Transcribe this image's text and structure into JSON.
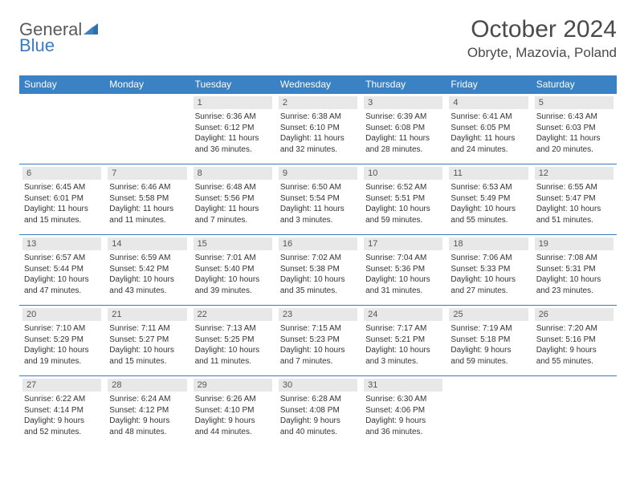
{
  "logo": {
    "text_general": "General",
    "text_blue": "Blue"
  },
  "title": "October 2024",
  "location": "Obryte, Mazovia, Poland",
  "header_bg": "#3b82c4",
  "border_color": "#3b7bbf",
  "daynum_bg": "#e8e8e8",
  "days_of_week": [
    "Sunday",
    "Monday",
    "Tuesday",
    "Wednesday",
    "Thursday",
    "Friday",
    "Saturday"
  ],
  "weeks": [
    [
      null,
      null,
      {
        "num": "1",
        "sunrise": "Sunrise: 6:36 AM",
        "sunset": "Sunset: 6:12 PM",
        "daylight": "Daylight: 11 hours and 36 minutes."
      },
      {
        "num": "2",
        "sunrise": "Sunrise: 6:38 AM",
        "sunset": "Sunset: 6:10 PM",
        "daylight": "Daylight: 11 hours and 32 minutes."
      },
      {
        "num": "3",
        "sunrise": "Sunrise: 6:39 AM",
        "sunset": "Sunset: 6:08 PM",
        "daylight": "Daylight: 11 hours and 28 minutes."
      },
      {
        "num": "4",
        "sunrise": "Sunrise: 6:41 AM",
        "sunset": "Sunset: 6:05 PM",
        "daylight": "Daylight: 11 hours and 24 minutes."
      },
      {
        "num": "5",
        "sunrise": "Sunrise: 6:43 AM",
        "sunset": "Sunset: 6:03 PM",
        "daylight": "Daylight: 11 hours and 20 minutes."
      }
    ],
    [
      {
        "num": "6",
        "sunrise": "Sunrise: 6:45 AM",
        "sunset": "Sunset: 6:01 PM",
        "daylight": "Daylight: 11 hours and 15 minutes."
      },
      {
        "num": "7",
        "sunrise": "Sunrise: 6:46 AM",
        "sunset": "Sunset: 5:58 PM",
        "daylight": "Daylight: 11 hours and 11 minutes."
      },
      {
        "num": "8",
        "sunrise": "Sunrise: 6:48 AM",
        "sunset": "Sunset: 5:56 PM",
        "daylight": "Daylight: 11 hours and 7 minutes."
      },
      {
        "num": "9",
        "sunrise": "Sunrise: 6:50 AM",
        "sunset": "Sunset: 5:54 PM",
        "daylight": "Daylight: 11 hours and 3 minutes."
      },
      {
        "num": "10",
        "sunrise": "Sunrise: 6:52 AM",
        "sunset": "Sunset: 5:51 PM",
        "daylight": "Daylight: 10 hours and 59 minutes."
      },
      {
        "num": "11",
        "sunrise": "Sunrise: 6:53 AM",
        "sunset": "Sunset: 5:49 PM",
        "daylight": "Daylight: 10 hours and 55 minutes."
      },
      {
        "num": "12",
        "sunrise": "Sunrise: 6:55 AM",
        "sunset": "Sunset: 5:47 PM",
        "daylight": "Daylight: 10 hours and 51 minutes."
      }
    ],
    [
      {
        "num": "13",
        "sunrise": "Sunrise: 6:57 AM",
        "sunset": "Sunset: 5:44 PM",
        "daylight": "Daylight: 10 hours and 47 minutes."
      },
      {
        "num": "14",
        "sunrise": "Sunrise: 6:59 AM",
        "sunset": "Sunset: 5:42 PM",
        "daylight": "Daylight: 10 hours and 43 minutes."
      },
      {
        "num": "15",
        "sunrise": "Sunrise: 7:01 AM",
        "sunset": "Sunset: 5:40 PM",
        "daylight": "Daylight: 10 hours and 39 minutes."
      },
      {
        "num": "16",
        "sunrise": "Sunrise: 7:02 AM",
        "sunset": "Sunset: 5:38 PM",
        "daylight": "Daylight: 10 hours and 35 minutes."
      },
      {
        "num": "17",
        "sunrise": "Sunrise: 7:04 AM",
        "sunset": "Sunset: 5:36 PM",
        "daylight": "Daylight: 10 hours and 31 minutes."
      },
      {
        "num": "18",
        "sunrise": "Sunrise: 7:06 AM",
        "sunset": "Sunset: 5:33 PM",
        "daylight": "Daylight: 10 hours and 27 minutes."
      },
      {
        "num": "19",
        "sunrise": "Sunrise: 7:08 AM",
        "sunset": "Sunset: 5:31 PM",
        "daylight": "Daylight: 10 hours and 23 minutes."
      }
    ],
    [
      {
        "num": "20",
        "sunrise": "Sunrise: 7:10 AM",
        "sunset": "Sunset: 5:29 PM",
        "daylight": "Daylight: 10 hours and 19 minutes."
      },
      {
        "num": "21",
        "sunrise": "Sunrise: 7:11 AM",
        "sunset": "Sunset: 5:27 PM",
        "daylight": "Daylight: 10 hours and 15 minutes."
      },
      {
        "num": "22",
        "sunrise": "Sunrise: 7:13 AM",
        "sunset": "Sunset: 5:25 PM",
        "daylight": "Daylight: 10 hours and 11 minutes."
      },
      {
        "num": "23",
        "sunrise": "Sunrise: 7:15 AM",
        "sunset": "Sunset: 5:23 PM",
        "daylight": "Daylight: 10 hours and 7 minutes."
      },
      {
        "num": "24",
        "sunrise": "Sunrise: 7:17 AM",
        "sunset": "Sunset: 5:21 PM",
        "daylight": "Daylight: 10 hours and 3 minutes."
      },
      {
        "num": "25",
        "sunrise": "Sunrise: 7:19 AM",
        "sunset": "Sunset: 5:18 PM",
        "daylight": "Daylight: 9 hours and 59 minutes."
      },
      {
        "num": "26",
        "sunrise": "Sunrise: 7:20 AM",
        "sunset": "Sunset: 5:16 PM",
        "daylight": "Daylight: 9 hours and 55 minutes."
      }
    ],
    [
      {
        "num": "27",
        "sunrise": "Sunrise: 6:22 AM",
        "sunset": "Sunset: 4:14 PM",
        "daylight": "Daylight: 9 hours and 52 minutes."
      },
      {
        "num": "28",
        "sunrise": "Sunrise: 6:24 AM",
        "sunset": "Sunset: 4:12 PM",
        "daylight": "Daylight: 9 hours and 48 minutes."
      },
      {
        "num": "29",
        "sunrise": "Sunrise: 6:26 AM",
        "sunset": "Sunset: 4:10 PM",
        "daylight": "Daylight: 9 hours and 44 minutes."
      },
      {
        "num": "30",
        "sunrise": "Sunrise: 6:28 AM",
        "sunset": "Sunset: 4:08 PM",
        "daylight": "Daylight: 9 hours and 40 minutes."
      },
      {
        "num": "31",
        "sunrise": "Sunrise: 6:30 AM",
        "sunset": "Sunset: 4:06 PM",
        "daylight": "Daylight: 9 hours and 36 minutes."
      },
      null,
      null
    ]
  ]
}
